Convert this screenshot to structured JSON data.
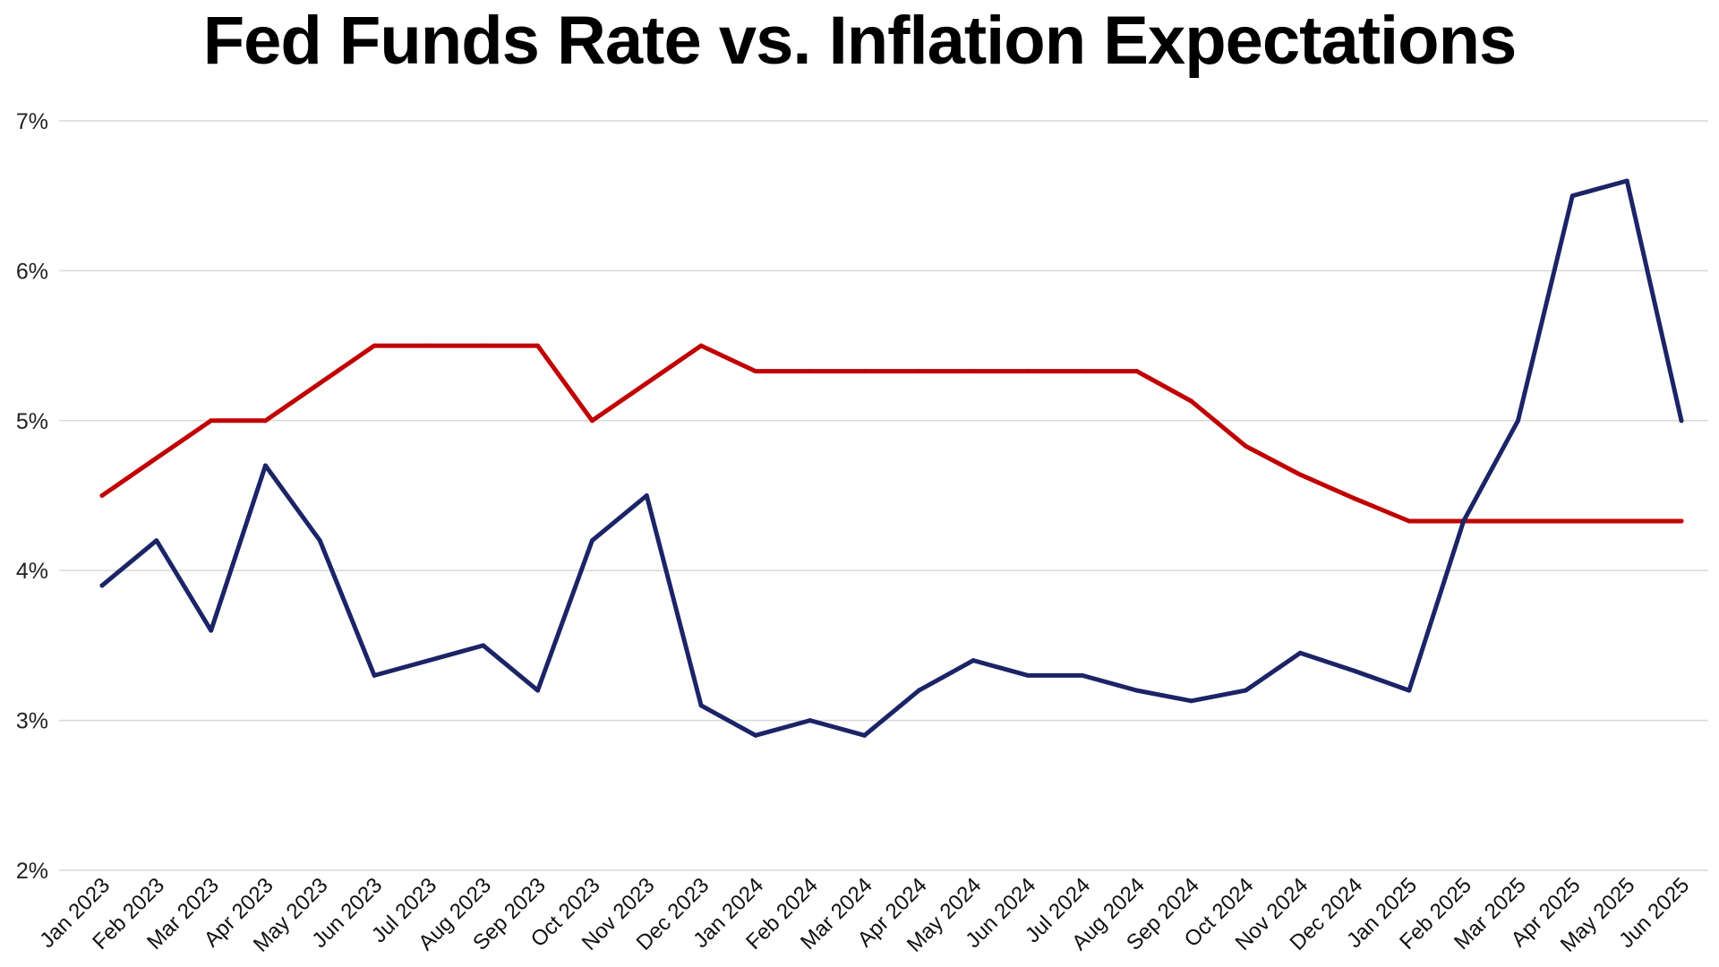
{
  "chart_data": {
    "type": "line",
    "title": "Fed Funds Rate vs. Inflation Expectations",
    "xlabel": "",
    "ylabel": "",
    "ylim": [
      2,
      7
    ],
    "yticks": [
      "2%",
      "3%",
      "4%",
      "5%",
      "6%",
      "7%"
    ],
    "grid": true,
    "legend": "none",
    "categories": [
      "Jan 2023",
      "Feb 2023",
      "Mar 2023",
      "Apr 2023",
      "May 2023",
      "Jun 2023",
      "Jul 2023",
      "Aug 2023",
      "Sep 2023",
      "Oct 2023",
      "Nov 2023",
      "Dec 2023",
      "Jan 2024",
      "Feb 2024",
      "Mar 2024",
      "Apr 2024",
      "May 2024",
      "Jun 2024",
      "Jul 2024",
      "Aug 2024",
      "Sep 2024",
      "Oct 2024",
      "Nov 2024",
      "Dec 2024",
      "Jan 2025",
      "Feb 2025",
      "Mar 2025",
      "Apr 2025",
      "May 2025",
      "Jun 2025"
    ],
    "series": [
      {
        "color": "#C00000",
        "values": [
          4.5,
          4.75,
          5.0,
          5.0,
          5.25,
          5.5,
          5.5,
          5.5,
          5.5,
          5.0,
          5.25,
          5.5,
          5.33,
          5.33,
          5.33,
          5.33,
          5.33,
          5.33,
          5.33,
          5.33,
          5.13,
          4.83,
          4.64,
          4.48,
          4.33,
          4.33,
          4.33,
          4.33,
          4.33,
          4.33
        ]
      },
      {
        "color": "#1B2466",
        "values": [
          3.9,
          4.2,
          3.6,
          4.7,
          4.2,
          3.3,
          3.4,
          3.5,
          3.2,
          4.2,
          4.5,
          3.1,
          2.9,
          3.0,
          2.9,
          3.2,
          3.4,
          3.3,
          3.3,
          3.2,
          3.13,
          3.2,
          3.45,
          3.33,
          3.2,
          4.33,
          5.0,
          6.5,
          6.6,
          5.0
        ]
      }
    ]
  }
}
